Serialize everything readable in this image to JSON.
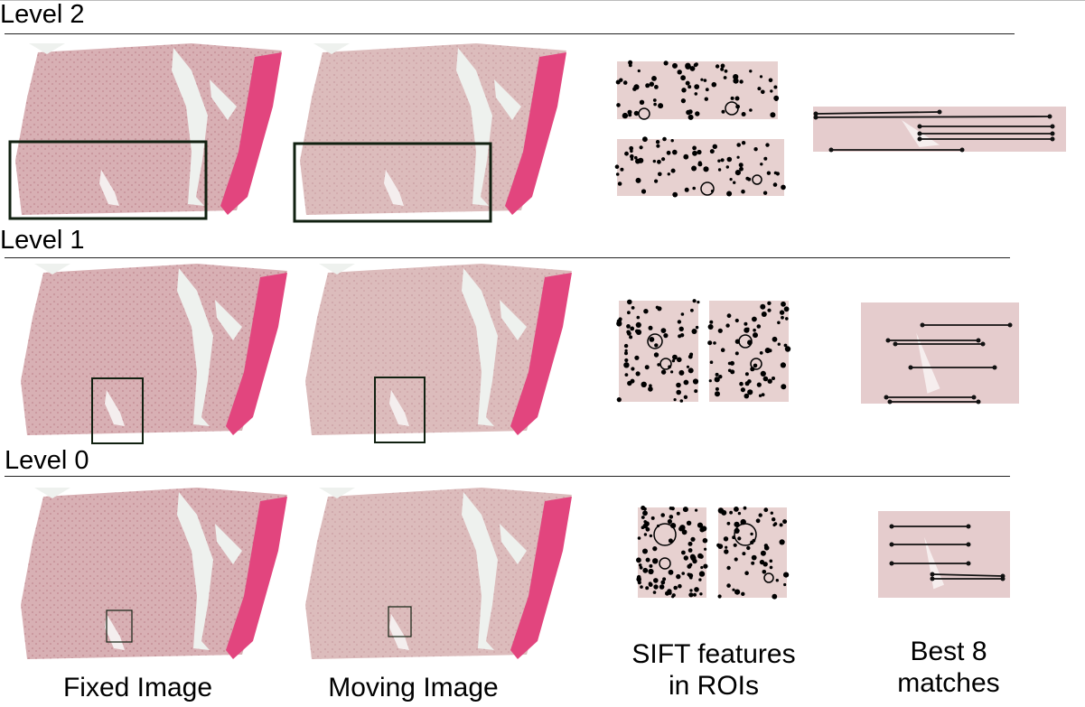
{
  "levels": [
    {
      "label": "Level 2"
    },
    {
      "label": "Level 1"
    },
    {
      "label": "Level 0"
    }
  ],
  "columns": {
    "fixed": "Fixed Image",
    "moving": "Moving Image",
    "sift_line1": "SIFT features",
    "sift_line2": "in ROIs",
    "best_line1": "Best 8",
    "best_line2": "matches"
  },
  "colors": {
    "tissue": "#d8b0b4",
    "tissue_dark": "#c8969d",
    "stroma": "#e2457e",
    "background_lumen": "#eef1ee",
    "roi_box": "#102010",
    "keypoint": "#000000"
  }
}
